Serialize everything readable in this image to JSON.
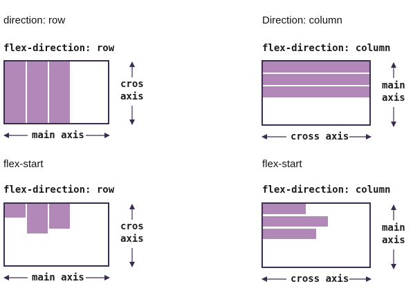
{
  "panels": [
    {
      "heading": "direction: row",
      "code": "flex-direction: row",
      "main_label": "main axis",
      "cross_label": [
        "cros",
        "axis"
      ]
    },
    {
      "heading": "Direction: column",
      "code": "flex-direction: column",
      "main_label": [
        "main",
        "axis"
      ],
      "cross_label": "cross axis"
    },
    {
      "heading": "flex-start",
      "code": "flex-direction: row",
      "main_label": "main axis",
      "cross_label": [
        "cros",
        "axis"
      ]
    },
    {
      "heading": "flex-start",
      "code": "flex-direction: column",
      "main_label": [
        "main",
        "axis"
      ],
      "cross_label": "cross axis"
    }
  ],
  "colors": {
    "item": "#b288b8",
    "border": "#3b2b52",
    "arrow": "#3b2b52"
  }
}
